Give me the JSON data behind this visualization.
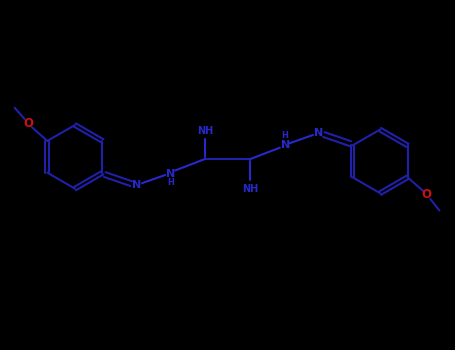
{
  "bg": "#000000",
  "bc": "#2020aa",
  "nc": "#2828cc",
  "oc": "#cc1111",
  "lw": 1.5,
  "fs": 8.0,
  "fs_sm": 7.0,
  "fig_w": 4.55,
  "fig_h": 3.5,
  "dpi": 100,
  "xlim": [
    0,
    10
  ],
  "ylim": [
    0,
    7.7
  ]
}
